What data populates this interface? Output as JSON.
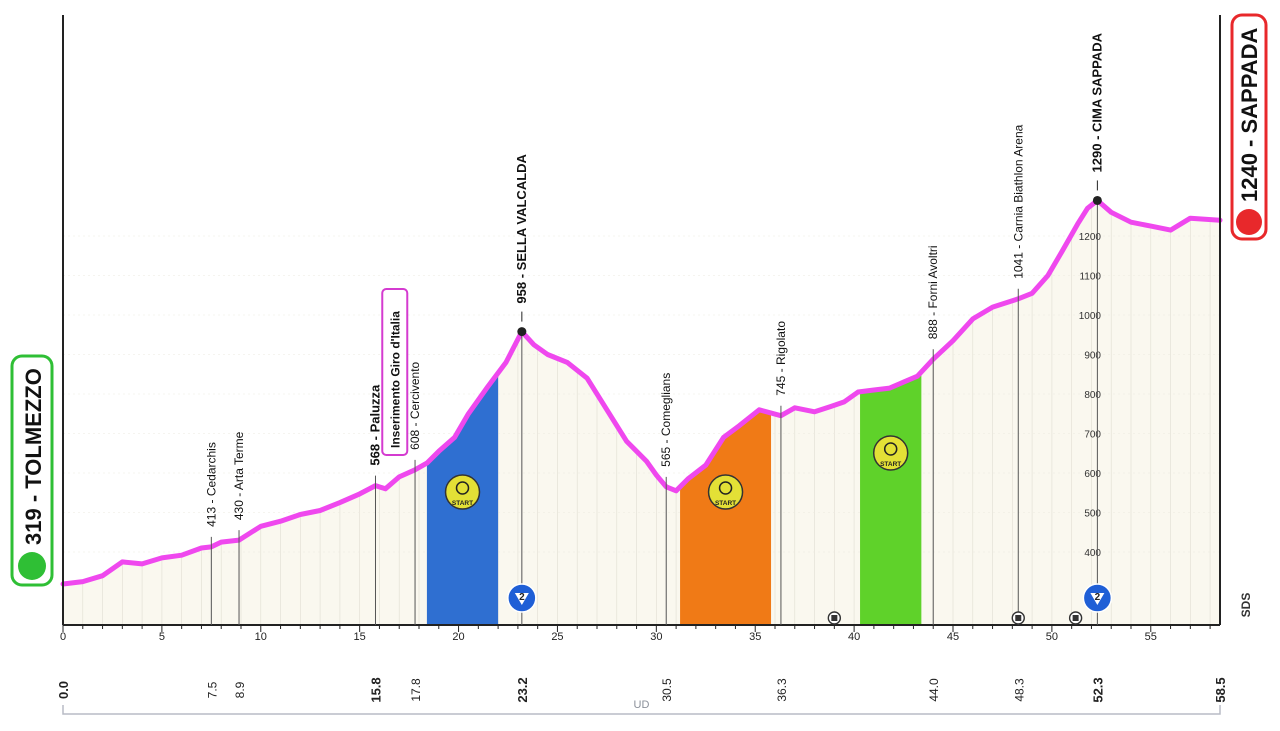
{
  "chart_data": {
    "type": "area",
    "title": "",
    "xlabel": "",
    "ylabel": "",
    "xlim": [
      0,
      58.5
    ],
    "ylim": [
      0,
      1300
    ],
    "x_ticks": [
      0,
      5,
      10,
      15,
      20,
      25,
      30,
      35,
      40,
      45,
      50,
      55
    ],
    "y_ticks": [
      400,
      500,
      600,
      700,
      800,
      900,
      1000,
      1100,
      1200
    ],
    "profile": [
      [
        0,
        319
      ],
      [
        1,
        325
      ],
      [
        2,
        340
      ],
      [
        3,
        375
      ],
      [
        4,
        370
      ],
      [
        5,
        385
      ],
      [
        6,
        392
      ],
      [
        7,
        410
      ],
      [
        7.5,
        413
      ],
      [
        8,
        425
      ],
      [
        8.9,
        430
      ],
      [
        10,
        465
      ],
      [
        11,
        478
      ],
      [
        12,
        495
      ],
      [
        13,
        505
      ],
      [
        14,
        525
      ],
      [
        15,
        547
      ],
      [
        15.8,
        568
      ],
      [
        16.3,
        560
      ],
      [
        17,
        590
      ],
      [
        17.8,
        608
      ],
      [
        18.4,
        625
      ],
      [
        19,
        655
      ],
      [
        19.8,
        690
      ],
      [
        20.5,
        750
      ],
      [
        21.5,
        820
      ],
      [
        22.4,
        880
      ],
      [
        23.2,
        958
      ],
      [
        23.8,
        925
      ],
      [
        24.5,
        900
      ],
      [
        25.5,
        880
      ],
      [
        26.5,
        840
      ],
      [
        27.5,
        760
      ],
      [
        28.5,
        680
      ],
      [
        29.5,
        630
      ],
      [
        30,
        595
      ],
      [
        30.5,
        565
      ],
      [
        31,
        555
      ],
      [
        31.6,
        585
      ],
      [
        32.5,
        620
      ],
      [
        33.4,
        690
      ],
      [
        34.2,
        720
      ],
      [
        35.2,
        760
      ],
      [
        36.3,
        745
      ],
      [
        37,
        765
      ],
      [
        38,
        755
      ],
      [
        38.8,
        768
      ],
      [
        39.5,
        780
      ],
      [
        40.2,
        805
      ],
      [
        41,
        810
      ],
      [
        41.8,
        815
      ],
      [
        42.5,
        830
      ],
      [
        43.2,
        845
      ],
      [
        44,
        888
      ],
      [
        45,
        935
      ],
      [
        46,
        990
      ],
      [
        47,
        1020
      ],
      [
        48.3,
        1041
      ],
      [
        49,
        1055
      ],
      [
        49.8,
        1100
      ],
      [
        50.5,
        1160
      ],
      [
        51.3,
        1230
      ],
      [
        51.8,
        1270
      ],
      [
        52.3,
        1290
      ],
      [
        53,
        1260
      ],
      [
        54,
        1235
      ],
      [
        55,
        1225
      ],
      [
        56,
        1215
      ],
      [
        57,
        1245
      ],
      [
        58.5,
        1240
      ]
    ],
    "locations": [
      {
        "km": "7.5",
        "x": 7.5,
        "elev": 413,
        "label": "413 - Cedarchis"
      },
      {
        "km": "8.9",
        "x": 8.9,
        "elev": 430,
        "label": "430 - Arta Terme"
      },
      {
        "km": "15.8",
        "x": 15.8,
        "elev": 568,
        "label": "568 - Paluzza",
        "bold": true
      },
      {
        "km": "17.8",
        "x": 17.8,
        "elev": 608,
        "label": "608 - Cercivento"
      },
      {
        "km": "23.2",
        "x": 23.2,
        "elev": 958,
        "label": "958 - SELLA VALCALDA",
        "bold": true,
        "summit": true
      },
      {
        "km": "30.5",
        "x": 30.5,
        "elev": 565,
        "label": "565 - Comeglians"
      },
      {
        "km": "36.3",
        "x": 36.3,
        "elev": 745,
        "label": "745 - Rigolato"
      },
      {
        "km": "44.0",
        "x": 44.0,
        "elev": 888,
        "label": "888 - Forni Avoltri"
      },
      {
        "km": "48.3",
        "x": 48.3,
        "elev": 1041,
        "label": "1041 - Carnia Biathlon Arena"
      },
      {
        "km": "52.3",
        "x": 52.3,
        "elev": 1290,
        "label": "1290 - CIMA SAPPADA",
        "bold": true,
        "summit": true
      }
    ],
    "start": {
      "km": "0.0",
      "label": "319 - TOLMEZZO"
    },
    "finish": {
      "km": "58.5",
      "label": "1240 - SAPPADA"
    },
    "note": "Inserimento Giro d'Italia",
    "bottom_label": "UD",
    "side_label": "SDS",
    "segments": [
      {
        "from": 18.4,
        "to": 22.0,
        "color": "#2f6fd1",
        "badge": "START"
      },
      {
        "from": 31.2,
        "to": 35.8,
        "color": "#f07a16",
        "badge": "START"
      },
      {
        "from": 40.3,
        "to": 43.4,
        "color": "#5fd22a",
        "badge": "START"
      }
    ],
    "kom_category": "2",
    "tunnels_km": [
      39.0,
      48.3,
      51.2
    ],
    "colors": {
      "profile_line": "#ef48ee",
      "fill": "#faf8ef",
      "start_green": "#2fbf35",
      "finish_red": "#e8282b",
      "kom_blue": "#1f5fd6"
    }
  }
}
